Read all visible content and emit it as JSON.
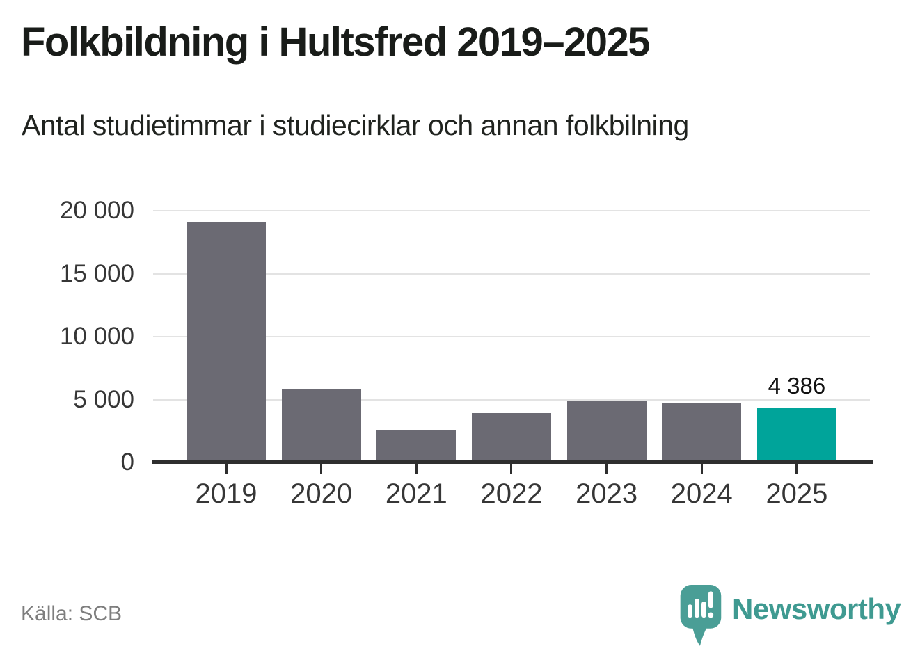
{
  "header": {
    "title": "Folkbildning i Hultsfred 2019–2025",
    "subtitle": "Antal studietimmar i studiecirklar och annan folkbilning"
  },
  "chart_data": {
    "type": "bar",
    "title": "Folkbildning i Hultsfred 2019–2025",
    "subtitle": "Antal studietimmar i studiecirklar och annan folkbilning",
    "categories": [
      "2019",
      "2020",
      "2021",
      "2022",
      "2023",
      "2024",
      "2025"
    ],
    "values": [
      19100,
      5800,
      2600,
      3900,
      4850,
      4750,
      4386
    ],
    "value_labels": [
      null,
      null,
      null,
      null,
      null,
      null,
      "4 386"
    ],
    "highlight_index": 6,
    "bar_color": "#6b6a73",
    "highlight_color": "#00a49a",
    "ylim": [
      0,
      20000
    ],
    "yticks": [
      {
        "value": 20000,
        "label": "20 000"
      },
      {
        "value": 15000,
        "label": "15 000"
      },
      {
        "value": 10000,
        "label": "10 000"
      },
      {
        "value": 5000,
        "label": "5 000"
      },
      {
        "value": 0,
        "label": "0"
      }
    ],
    "grid": "horizontal",
    "legend": "none",
    "xlabel": "",
    "ylabel": ""
  },
  "footer": {
    "source": "Källa: SCB",
    "brand": {
      "name": "Newsworthy",
      "color": "#3f9a91",
      "icon": "speech-bubble-bar-chart-exclamation-icon",
      "icon_color": "#4a9e96"
    }
  }
}
